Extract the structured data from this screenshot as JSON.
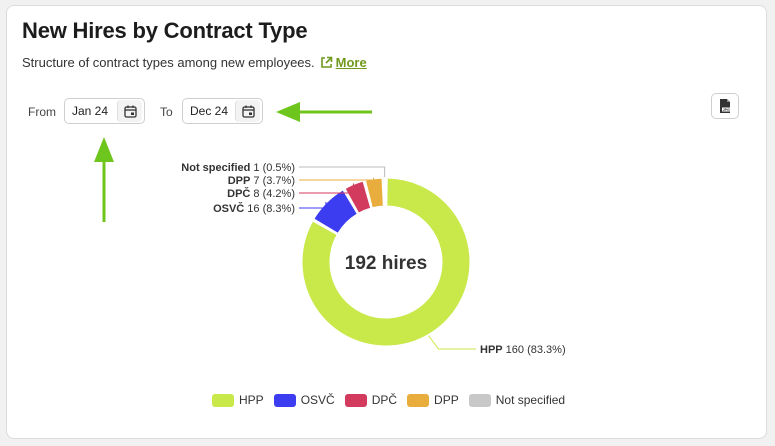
{
  "header": {
    "title": "New Hires by Contract Type",
    "subtitle": "Structure of contract types among new employees.",
    "more_label": "More"
  },
  "filters": {
    "from_label": "From",
    "from_value": "Jan 24",
    "to_label": "To",
    "to_value": "Dec 24"
  },
  "icons": {
    "external_link": "external-link-icon",
    "calendar": "calendar-icon",
    "export": "jpg-export-icon",
    "annotation": "green-arrow"
  },
  "colors": {
    "accent": "#6f9a1d",
    "annotation_arrow": "#6ec51e"
  },
  "chart_data": {
    "type": "pie",
    "variant": "donut",
    "center_label": "192 hires",
    "total": 192,
    "slices": [
      {
        "name": "HPP",
        "value": 160,
        "percent_label": "(83.3%)",
        "color": "#c9e84a"
      },
      {
        "name": "OSVČ",
        "value": 16,
        "percent_label": "(8.3%)",
        "color": "#3c3cf0"
      },
      {
        "name": "DPČ",
        "value": 8,
        "percent_label": "(4.2%)",
        "color": "#d23a5e"
      },
      {
        "name": "DPP",
        "value": 7,
        "percent_label": "(3.7%)",
        "color": "#e8ad3c"
      },
      {
        "name": "Not specified",
        "value": 1,
        "percent_label": "(0.5%)",
        "color": "#c8c8c8"
      }
    ],
    "legend": [
      "HPP",
      "OSVČ",
      "DPČ",
      "DPP",
      "Not specified"
    ],
    "legend_position": "bottom"
  }
}
